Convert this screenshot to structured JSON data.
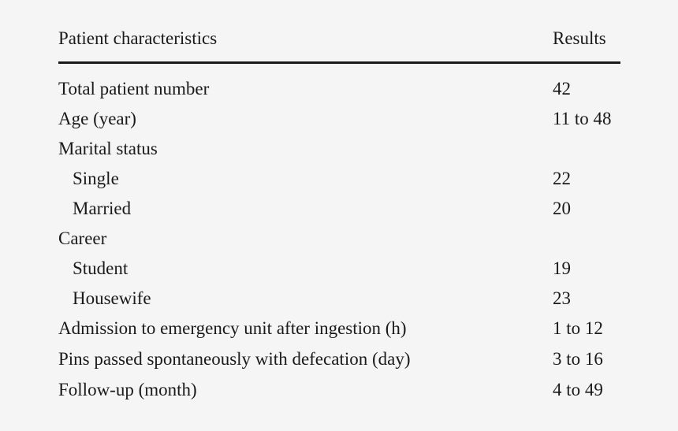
{
  "table": {
    "header": {
      "characteristic": "Patient characteristics",
      "result": "Results"
    },
    "rows": [
      {
        "label": "Total patient number",
        "value": "42",
        "indent": false
      },
      {
        "label": "Age (year)",
        "value": "11 to 48",
        "indent": false
      },
      {
        "label": "Marital status",
        "value": "",
        "indent": false
      },
      {
        "label": "Single",
        "value": "22",
        "indent": true
      },
      {
        "label": "Married",
        "value": "20",
        "indent": true
      },
      {
        "label": "Career",
        "value": "",
        "indent": false
      },
      {
        "label": "Student",
        "value": "19",
        "indent": true
      },
      {
        "label": "Housewife",
        "value": "23",
        "indent": true
      },
      {
        "label": "Admission to emergency unit after ingestion (h)",
        "value": "1 to 12",
        "indent": false
      },
      {
        "label": "Pins passed spontaneously with defecation (day)",
        "value": "3 to 16",
        "indent": false
      },
      {
        "label": "Follow-up (month)",
        "value": "4 to 49",
        "indent": false
      }
    ]
  }
}
